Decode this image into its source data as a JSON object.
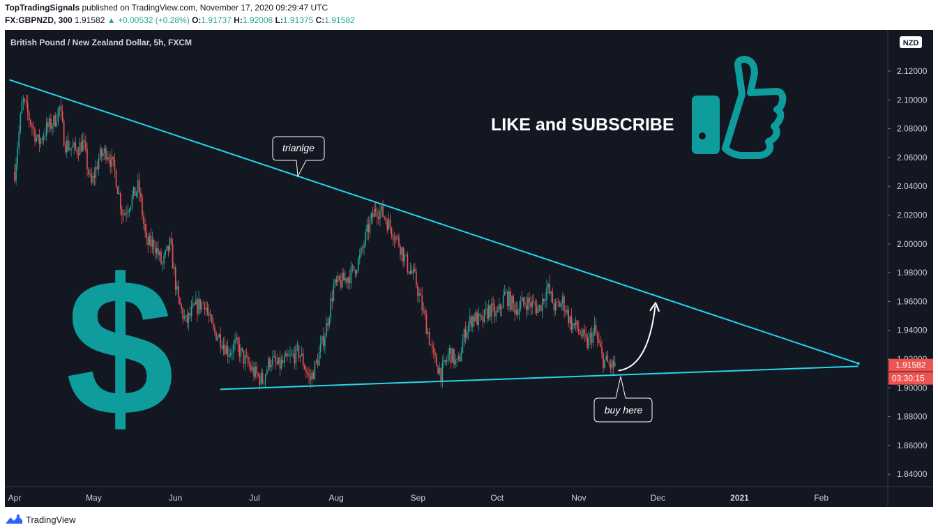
{
  "header": {
    "author": "TopTradingSignals",
    "published": "published on TradingView.com, November 17, 2020 09:29:47 UTC",
    "symbol": "FX:GBPNZD, 300",
    "last": "1.91582",
    "change": "▲ +0.00532 (+0.28%)",
    "o_label": "O:",
    "o_value": "1.91737",
    "h_label": "H:",
    "h_value": "1.92008",
    "l_label": "L:",
    "l_value": "1.91375",
    "c_label": "C:",
    "c_value": "1.91582"
  },
  "chart_title": "British Pound / New Zealand Dollar, 5h, FXCM",
  "currency_badge": "NZD",
  "price_tag": "1.91582",
  "countdown_tag": "03:30:15",
  "like_text": "LIKE and SUBSCRIBE",
  "dollar_glyph": "$",
  "callouts": {
    "triangle": "trianlge",
    "buy": "buy here"
  },
  "footer": {
    "brand": "TradingView"
  },
  "colors": {
    "background": "#131722",
    "trendline": "#26d7e8",
    "up_candle": "#26a69a",
    "down_candle": "#ef5350",
    "accent": "#0e9c9c",
    "price_tag": "#ef5350"
  },
  "chart_data": {
    "type": "candlestick",
    "title": "British Pound / New Zealand Dollar, 5h, FXCM",
    "y_ticks": [
      "2.12000",
      "2.10000",
      "2.08000",
      "2.06000",
      "2.04000",
      "2.02000",
      "2.00000",
      "1.98000",
      "1.96000",
      "1.94000",
      "1.92000",
      "1.90000",
      "1.88000",
      "1.86000",
      "1.84000"
    ],
    "ylim": [
      1.835,
      2.15
    ],
    "x_ticks": [
      "Apr",
      "May",
      "Jun",
      "Jul",
      "Aug",
      "Sep",
      "Oct",
      "Nov",
      "Dec",
      "2021",
      "Feb"
    ],
    "x_tick_days": [
      0,
      30,
      61,
      91,
      122,
      153,
      183,
      214,
      244,
      275,
      306
    ],
    "price_path": [
      [
        0,
        2.05
      ],
      [
        3,
        2.1
      ],
      [
        6,
        2.085
      ],
      [
        9,
        2.07
      ],
      [
        12,
        2.08
      ],
      [
        15,
        2.085
      ],
      [
        17,
        2.095
      ],
      [
        19,
        2.07
      ],
      [
        23,
        2.065
      ],
      [
        26,
        2.07
      ],
      [
        29,
        2.04
      ],
      [
        32,
        2.06
      ],
      [
        35,
        2.065
      ],
      [
        38,
        2.05
      ],
      [
        41,
        2.02
      ],
      [
        44,
        2.03
      ],
      [
        47,
        2.04
      ],
      [
        50,
        2.0
      ],
      [
        53,
        2.0
      ],
      [
        56,
        1.985
      ],
      [
        59,
        2.0
      ],
      [
        62,
        1.96
      ],
      [
        65,
        1.945
      ],
      [
        68,
        1.955
      ],
      [
        72,
        1.96
      ],
      [
        75,
        1.94
      ],
      [
        78,
        1.935
      ],
      [
        81,
        1.925
      ],
      [
        84,
        1.93
      ],
      [
        87,
        1.92
      ],
      [
        91,
        1.91
      ],
      [
        94,
        1.905
      ],
      [
        97,
        1.92
      ],
      [
        100,
        1.915
      ],
      [
        104,
        1.92
      ],
      [
        108,
        1.925
      ],
      [
        112,
        1.905
      ],
      [
        115,
        1.92
      ],
      [
        118,
        1.94
      ],
      [
        121,
        1.97
      ],
      [
        125,
        1.975
      ],
      [
        128,
        1.98
      ],
      [
        131,
        1.99
      ],
      [
        134,
        2.01
      ],
      [
        137,
        2.025
      ],
      [
        140,
        2.02
      ],
      [
        143,
        2.01
      ],
      [
        146,
        2.0
      ],
      [
        149,
        1.985
      ],
      [
        152,
        1.975
      ],
      [
        156,
        1.945
      ],
      [
        159,
        1.92
      ],
      [
        162,
        1.91
      ],
      [
        165,
        1.925
      ],
      [
        168,
        1.915
      ],
      [
        171,
        1.94
      ],
      [
        174,
        1.95
      ],
      [
        177,
        1.945
      ],
      [
        180,
        1.955
      ],
      [
        183,
        1.95
      ],
      [
        186,
        1.965
      ],
      [
        190,
        1.955
      ],
      [
        194,
        1.96
      ],
      [
        199,
        1.955
      ],
      [
        202,
        1.97
      ],
      [
        205,
        1.955
      ],
      [
        208,
        1.96
      ],
      [
        211,
        1.945
      ],
      [
        214,
        1.94
      ],
      [
        217,
        1.93
      ],
      [
        220,
        1.94
      ],
      [
        223,
        1.92
      ],
      [
        226,
        1.915
      ],
      [
        228,
        1.9158
      ]
    ],
    "trendlines": [
      {
        "name": "upper",
        "from": [
          -2,
          2.114
        ],
        "to": [
          320,
          1.917
        ]
      },
      {
        "name": "lower",
        "from": [
          78,
          1.899
        ],
        "to": [
          320,
          1.915
        ]
      }
    ],
    "arrow": {
      "from": [
        229,
        1.912
      ],
      "to": [
        243,
        1.957
      ]
    },
    "last_price": 1.91582
  }
}
